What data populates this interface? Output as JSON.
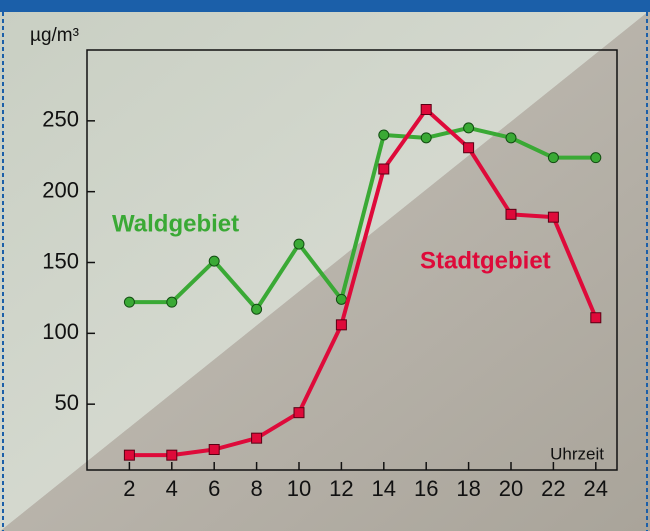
{
  "chart_data": {
    "type": "line",
    "y_label": "µg/m³",
    "x_label": "Uhrzeit",
    "x": [
      2,
      4,
      6,
      8,
      10,
      12,
      14,
      16,
      18,
      20,
      22,
      24
    ],
    "series": [
      {
        "name": "Waldgebiet",
        "color": "#3aa935",
        "marker": "circle",
        "values": [
          122,
          122,
          151,
          117,
          163,
          124,
          240,
          238,
          245,
          238,
          224,
          224
        ]
      },
      {
        "name": "Stadtgebiet",
        "color": "#de0a3a",
        "marker": "square",
        "values": [
          14,
          14,
          18,
          26,
          44,
          106,
          216,
          258,
          231,
          184,
          182,
          111
        ]
      }
    ],
    "xlim": [
      0,
      25
    ],
    "ylim": [
      0,
      300
    ],
    "xticks": [
      2,
      4,
      6,
      8,
      10,
      12,
      14,
      16,
      18,
      20,
      22,
      24
    ],
    "yticks": [
      50,
      100,
      150,
      200,
      250
    ]
  }
}
